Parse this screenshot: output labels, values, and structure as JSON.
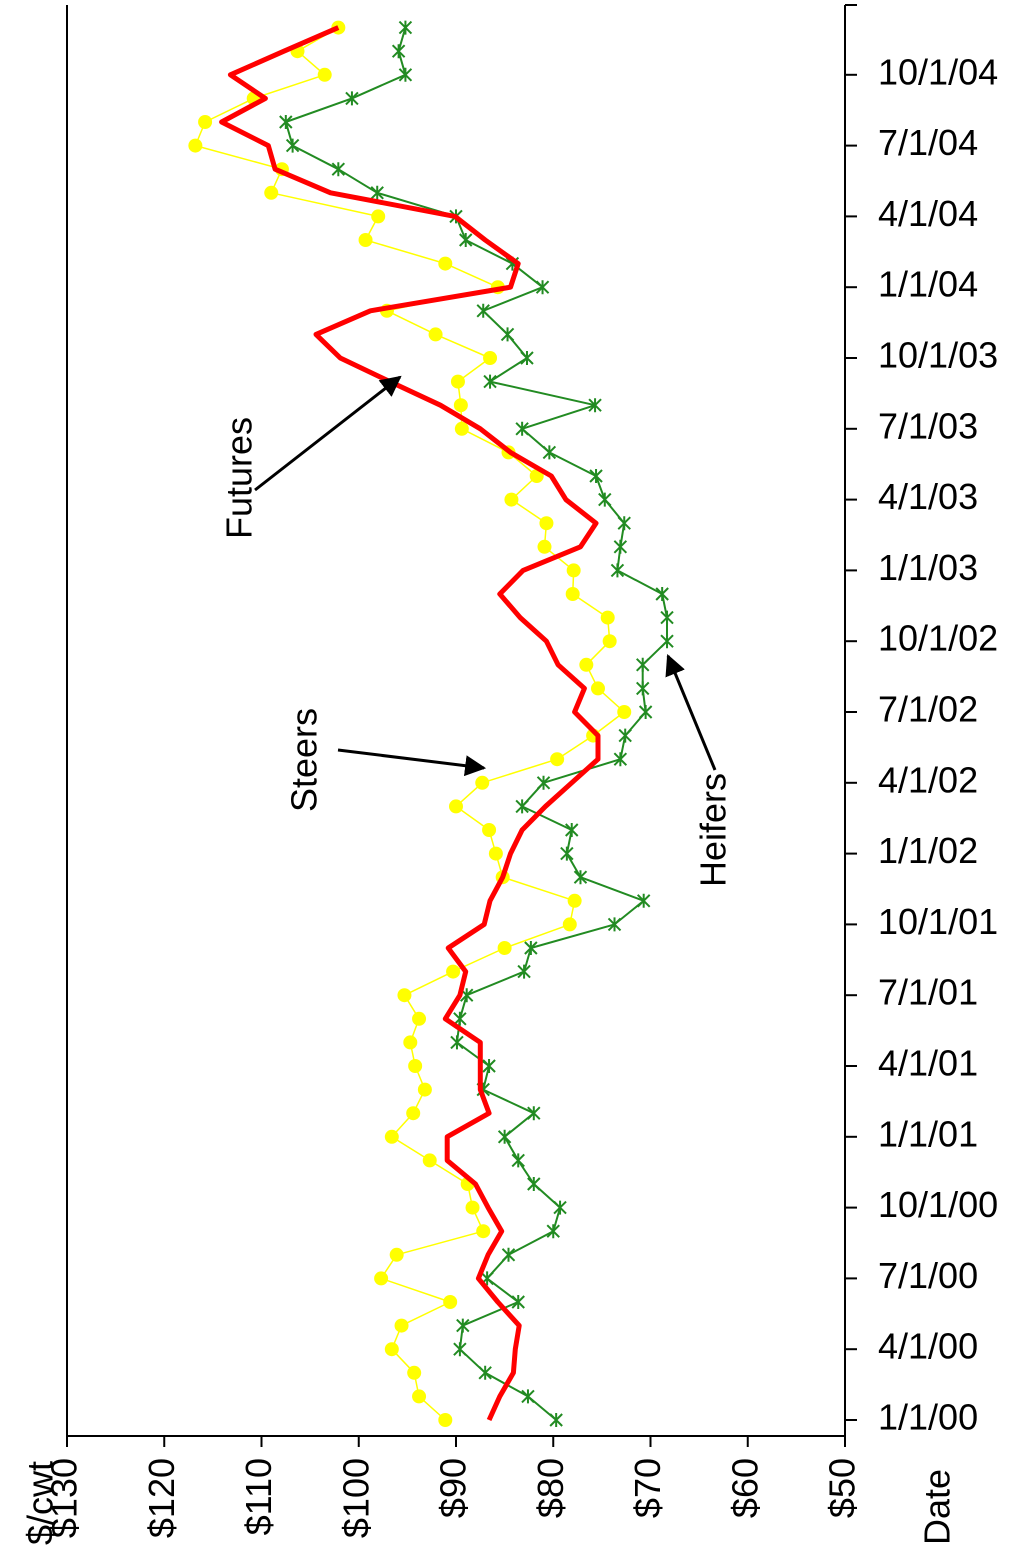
{
  "chart_data": {
    "type": "line",
    "x_label": "Date",
    "y_label": "$/cwt",
    "x": [
      "2000-01-01",
      "2000-02-01",
      "2000-03-01",
      "2000-04-01",
      "2000-05-01",
      "2000-06-01",
      "2000-07-01",
      "2000-08-01",
      "2000-09-01",
      "2000-10-01",
      "2000-11-01",
      "2000-12-01",
      "2001-01-01",
      "2001-02-01",
      "2001-03-01",
      "2001-04-01",
      "2001-05-01",
      "2001-06-01",
      "2001-07-01",
      "2001-08-01",
      "2001-09-01",
      "2001-10-01",
      "2001-11-01",
      "2001-12-01",
      "2002-01-01",
      "2002-02-01",
      "2002-03-01",
      "2002-04-01",
      "2002-05-01",
      "2002-06-01",
      "2002-07-01",
      "2002-08-01",
      "2002-09-01",
      "2002-10-01",
      "2002-11-01",
      "2002-12-01",
      "2003-01-01",
      "2003-02-01",
      "2003-03-01",
      "2003-04-01",
      "2003-05-01",
      "2003-06-01",
      "2003-07-01",
      "2003-08-01",
      "2003-09-01",
      "2003-10-01",
      "2003-11-01",
      "2003-12-01",
      "2004-01-01",
      "2004-02-01",
      "2004-03-01",
      "2004-04-01",
      "2004-05-01",
      "2004-06-01",
      "2004-07-01",
      "2004-08-01",
      "2004-09-01",
      "2004-10-01",
      "2004-11-01",
      "2004-12-01"
    ],
    "xlim": [
      "2000-01-01",
      "2005-01-01"
    ],
    "xticks": [
      {
        "value": "2000-01-01",
        "label": "1/1/00"
      },
      {
        "value": "2000-04-01",
        "label": "4/1/00"
      },
      {
        "value": "2000-07-01",
        "label": "7/1/00"
      },
      {
        "value": "2000-10-01",
        "label": "10/1/00"
      },
      {
        "value": "2001-01-01",
        "label": "1/1/01"
      },
      {
        "value": "2001-04-01",
        "label": "4/1/01"
      },
      {
        "value": "2001-07-01",
        "label": "7/1/01"
      },
      {
        "value": "2001-10-01",
        "label": "10/1/01"
      },
      {
        "value": "2002-01-01",
        "label": "1/1/02"
      },
      {
        "value": "2002-04-01",
        "label": "4/1/02"
      },
      {
        "value": "2002-07-01",
        "label": "7/1/02"
      },
      {
        "value": "2002-10-01",
        "label": "10/1/02"
      },
      {
        "value": "2003-01-01",
        "label": "1/1/03"
      },
      {
        "value": "2003-04-01",
        "label": "4/1/03"
      },
      {
        "value": "2003-07-01",
        "label": "7/1/03"
      },
      {
        "value": "2003-10-01",
        "label": "10/1/03"
      },
      {
        "value": "2004-01-01",
        "label": "1/1/04"
      },
      {
        "value": "2004-04-01",
        "label": "4/1/04"
      },
      {
        "value": "2004-07-01",
        "label": "7/1/04"
      },
      {
        "value": "2004-10-01",
        "label": "10/1/04"
      }
    ],
    "ylim": [
      130,
      50
    ],
    "yticks": [
      {
        "value": 130,
        "label": "$130"
      },
      {
        "value": 120,
        "label": "$120"
      },
      {
        "value": 110,
        "label": "$110"
      },
      {
        "value": 100,
        "label": "$100"
      },
      {
        "value": 90,
        "label": "$90"
      },
      {
        "value": 80,
        "label": "$80"
      },
      {
        "value": 70,
        "label": "$70"
      },
      {
        "value": 60,
        "label": "$60"
      },
      {
        "value": 50,
        "label": "$50"
      }
    ],
    "series": [
      {
        "name": "Steers",
        "color": "#ffff00",
        "marker": "circle",
        "values": [
          91.1,
          93.8,
          94.3,
          96.6,
          95.6,
          90.6,
          97.7,
          96.1,
          87.2,
          88.3,
          88.8,
          92.7,
          96.6,
          94.4,
          93.2,
          94.2,
          94.7,
          93.8,
          95.3,
          90.3,
          85.0,
          78.3,
          77.8,
          85.2,
          85.9,
          86.6,
          90.0,
          87.3,
          79.6,
          75.9,
          72.7,
          75.4,
          76.6,
          74.2,
          74.4,
          78.0,
          77.9,
          80.9,
          80.7,
          84.3,
          81.7,
          84.6,
          89.4,
          89.5,
          89.8,
          86.5,
          92.1,
          97.1,
          85.7,
          91.1,
          99.3,
          98.0,
          109.0,
          107.9,
          116.8,
          115.8,
          110.8,
          103.5,
          106.3,
          102.1
        ]
      },
      {
        "name": "Heifers",
        "color": "#228b22",
        "marker": "star",
        "values": [
          79.7,
          82.6,
          87.0,
          89.6,
          89.3,
          83.6,
          86.8,
          84.6,
          80.0,
          79.3,
          82.0,
          83.6,
          85.0,
          82.0,
          87.2,
          86.6,
          89.9,
          89.6,
          88.9,
          83.0,
          82.3,
          73.7,
          70.7,
          77.2,
          78.6,
          78.1,
          83.2,
          81.0,
          73.1,
          72.6,
          70.5,
          70.8,
          70.8,
          68.3,
          68.3,
          68.8,
          73.4,
          73.1,
          72.7,
          74.7,
          75.6,
          80.4,
          83.2,
          75.7,
          86.5,
          82.7,
          84.7,
          87.2,
          81.1,
          84.2,
          89.0,
          90.0,
          98.1,
          102.1,
          106.8,
          107.5,
          100.7,
          95.2,
          95.9,
          95.2
        ]
      },
      {
        "name": "Futures",
        "color": "#ff0000",
        "marker": "none",
        "values": [
          86.6,
          85.5,
          84.1,
          83.9,
          83.5,
          85.7,
          87.7,
          86.7,
          85.3,
          86.7,
          88.0,
          90.9,
          90.9,
          86.6,
          87.5,
          87.5,
          87.5,
          91.1,
          89.6,
          89.0,
          90.8,
          87.1,
          86.5,
          85.2,
          84.4,
          83.2,
          80.8,
          78.1,
          75.4,
          75.4,
          77.8,
          76.8,
          79.5,
          80.7,
          83.4,
          85.5,
          83.1,
          77.2,
          75.6,
          78.7,
          80.2,
          84.4,
          87.5,
          91.6,
          96.8,
          101.9,
          104.4,
          98.8,
          84.4,
          83.6,
          87.0,
          90.1,
          102.9,
          108.6,
          109.3,
          114.1,
          109.6,
          113.2,
          107.7,
          102.1
        ]
      }
    ]
  }
}
